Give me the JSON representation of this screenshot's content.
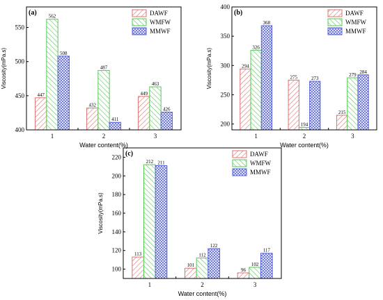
{
  "colors": {
    "DAWF": "#e07070",
    "WMFW": "#55c855",
    "MMWF": "#5560e0"
  },
  "chart_data": [
    {
      "type": "bar",
      "panel": "(a)",
      "categories": [
        "1",
        "2",
        "3"
      ],
      "series": [
        {
          "name": "DAWF",
          "values": [
            447,
            432,
            449
          ]
        },
        {
          "name": "WMFW",
          "values": [
            562,
            487,
            463
          ]
        },
        {
          "name": "MMWF",
          "values": [
            508,
            411,
            426
          ]
        }
      ],
      "xlabel": "Water content(%)",
      "ylabel": "Viscosity(mPa.s)",
      "ylim": [
        400,
        580
      ],
      "yticks": [
        400,
        450,
        500,
        550
      ],
      "legend": "top-right"
    },
    {
      "type": "bar",
      "panel": "(b)",
      "categories": [
        "1",
        "2",
        "3"
      ],
      "series": [
        {
          "name": "DAWF",
          "values": [
            294,
            275,
            215
          ]
        },
        {
          "name": "WMFW",
          "values": [
            326,
            194,
            279
          ]
        },
        {
          "name": "MMWF",
          "values": [
            368,
            273,
            284
          ]
        }
      ],
      "xlabel": "Water content(%)",
      "ylabel": "Viscosity(mPa.s)",
      "ylim": [
        190,
        400
      ],
      "yticks": [
        200,
        250,
        300,
        350,
        400
      ],
      "legend": "top-right"
    },
    {
      "type": "bar",
      "panel": "(c)",
      "categories": [
        "1",
        "2",
        "3"
      ],
      "series": [
        {
          "name": "DAWF",
          "values": [
            113,
            101,
            96
          ]
        },
        {
          "name": "WMFW",
          "values": [
            212,
            112,
            102
          ]
        },
        {
          "name": "MMWF",
          "values": [
            211,
            122,
            117
          ]
        }
      ],
      "xlabel": "Water content(%)",
      "ylabel": "Viscosity(mPa.s)",
      "ylim": [
        90,
        230
      ],
      "yticks": [
        100,
        120,
        140,
        160,
        180,
        200,
        220
      ],
      "legend": "top-right"
    }
  ]
}
